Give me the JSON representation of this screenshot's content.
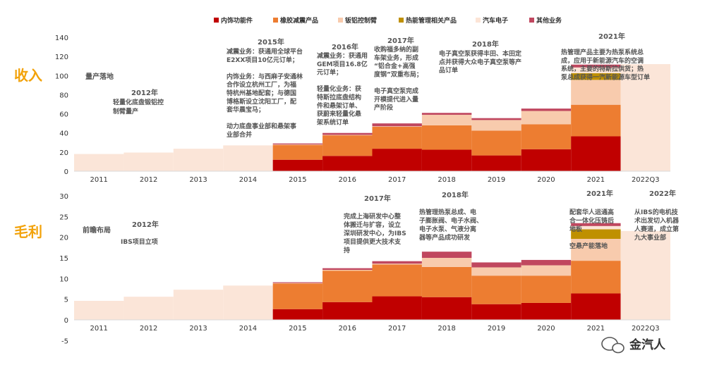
{
  "colors": {
    "series": [
      "#c00000",
      "#ed7d31",
      "#f8cbad",
      "#bf9000",
      "#fce4d6",
      "#c0475f"
    ],
    "history": "#fbe5d8",
    "side_label": "#f2a20a"
  },
  "side_labels": {
    "revenue": "收入",
    "profit": "毛利"
  },
  "watermark": "金汽人",
  "chart_data": [
    {
      "type": "bar",
      "id": "revenue",
      "stacked": true,
      "categories": [
        "2011",
        "2012",
        "2013",
        "2014",
        "2015",
        "2016",
        "2017",
        "2018",
        "2019",
        "2020",
        "2021",
        "2022Q3"
      ],
      "ylim": [
        0,
        140
      ],
      "yticks": [
        0,
        20,
        40,
        60,
        80,
        100,
        120,
        140
      ],
      "grid": false,
      "legend": "top",
      "total_only": {
        "2011": 18,
        "2012": 19.5,
        "2013": 23.5,
        "2014": 27,
        "2022Q3": 112
      },
      "series": [
        {
          "name": "内饰功能件",
          "values": [
            null,
            null,
            null,
            null,
            12,
            16,
            23.5,
            22.5,
            16.5,
            23,
            36.5,
            null
          ]
        },
        {
          "name": "橡胶减震产品",
          "values": [
            null,
            null,
            null,
            null,
            15.5,
            21.5,
            23,
            25.5,
            26,
            26,
            33,
            null
          ]
        },
        {
          "name": "钣铝控制臂",
          "values": [
            null,
            null,
            null,
            null,
            0.5,
            0.5,
            0.5,
            11,
            11,
            14,
            26,
            null
          ]
        },
        {
          "name": "热能管理相关产品",
          "values": [
            null,
            null,
            null,
            null,
            0,
            0,
            0,
            0,
            0,
            0,
            7,
            null
          ]
        },
        {
          "name": "汽车电子",
          "values": [
            null,
            null,
            null,
            null,
            0,
            0,
            0,
            0,
            0,
            0,
            6,
            null
          ]
        },
        {
          "name": "其他业务",
          "values": [
            null,
            null,
            null,
            null,
            1,
            2,
            3,
            2,
            2,
            2.5,
            3,
            null
          ]
        }
      ]
    },
    {
      "type": "bar",
      "id": "gross_profit",
      "stacked": true,
      "categories": [
        "2011",
        "2012",
        "2013",
        "2014",
        "2015",
        "2016",
        "2017",
        "2018",
        "2019",
        "2020",
        "2021",
        "2022Q3"
      ],
      "ylim": [
        -5,
        30
      ],
      "yticks": [
        -5,
        0,
        5,
        10,
        15,
        20,
        25,
        30
      ],
      "grid": false,
      "total_only": {
        "2011": 4.6,
        "2012": 5.6,
        "2013": 7.3,
        "2014": 8.3,
        "2022Q3": 21.5
      },
      "series": [
        {
          "name": "内饰功能件",
          "values": [
            null,
            null,
            null,
            null,
            2.6,
            4.3,
            5.7,
            5.5,
            3.8,
            4.1,
            6.4,
            null
          ]
        },
        {
          "name": "橡胶减震产品",
          "values": [
            null,
            null,
            null,
            null,
            6.2,
            7.6,
            7.7,
            7.3,
            6.9,
            6.6,
            7.9,
            null
          ]
        },
        {
          "name": "钣铝控制臂",
          "values": [
            null,
            null,
            null,
            null,
            0.1,
            0.2,
            0.2,
            2.2,
            2,
            2.5,
            5.3,
            null
          ]
        },
        {
          "name": "热能管理相关产品",
          "values": [
            null,
            null,
            null,
            null,
            0,
            0,
            0,
            0,
            0,
            0,
            2.3,
            null
          ]
        },
        {
          "name": "汽车电子",
          "values": [
            null,
            null,
            null,
            null,
            0,
            0,
            0,
            0,
            0,
            0,
            0.8,
            null
          ]
        },
        {
          "name": "其他业务",
          "values": [
            null,
            null,
            null,
            null,
            0.2,
            0.4,
            0.6,
            1.5,
            1.2,
            1.3,
            0.7,
            null
          ]
        }
      ]
    }
  ],
  "annotations": {
    "revenue": {
      "stage": "量产落地",
      "y2012": {
        "year": "2012年",
        "lines": [
          "轻量化底盘锻铝控",
          "制臂量产"
        ]
      },
      "y2015": {
        "year": "2015年",
        "lines": [
          "减震业务：获通用全球平台",
          "E2XX项目10亿元订单；",
          "",
          "内饰业务：与西麻子安通林",
          "合作设立杭州工厂，为福",
          "特杭州基地配套；与德国",
          "博格斯设立沈阳工厂，配",
          "套华晨宝马；",
          "",
          "动力底盘事业部和悬架事",
          "业部合并"
        ]
      },
      "y2016": {
        "year": "2016年",
        "lines": [
          "减震业务：获通用",
          "GEM项目16.8亿",
          "元订单；",
          "",
          "轻量化业务：获",
          "特斯拉底盘结构",
          "件和悬架订单、",
          "获蔚来轻量化悬",
          "架系统订单"
        ]
      },
      "y2017": {
        "year": "2017年",
        "lines": [
          "收购福多纳的副",
          "车架业务，形成",
          "“铝合金+高强",
          "度钢”双重布局；",
          "",
          "电子真空泵完成",
          "开模提代进入量",
          "产阶段"
        ]
      },
      "y2018": {
        "year": "2018年",
        "lines": [
          "电子真空泵获得丰田、本田定",
          "点并获得大众电子真空泵等产",
          "品订单"
        ]
      },
      "y2021": {
        "year": "2021年",
        "lines": [
          "热管理产品主要为热泵系统总",
          "成，应用于新能源汽车的空调",
          "系统，主要的特斯拉供货；热",
          "泵总成获得一汽新能源车型订单"
        ]
      }
    },
    "profit": {
      "stage": "前瞻布局",
      "y2012": {
        "year": "2012年",
        "lines": [
          "IBS项目立项"
        ]
      },
      "y2017": {
        "year": "2017年",
        "lines": [
          "完成上海研发中心整",
          "体搬迁与扩容，设立",
          "深圳研发中心，为IBS",
          "项目提供更大技术支",
          "持"
        ]
      },
      "y2018": {
        "year": "2018年",
        "lines": [
          "热管理热泵总成、电",
          "子膨胀阀、电子水阀、",
          "电子水泵、气液分离",
          "器等产品成功研发"
        ]
      },
      "y2021": {
        "year": "2021年",
        "lines": [
          "配套华人运通高",
          "合一体化压铸后",
          "地板",
          "",
          "空悬产能落地"
        ]
      },
      "y2022": {
        "year": "2022年",
        "lines": [
          "从IBS的电机技",
          "术出发切入机器",
          "人赛道，成立第",
          "九大事业部"
        ]
      }
    }
  }
}
